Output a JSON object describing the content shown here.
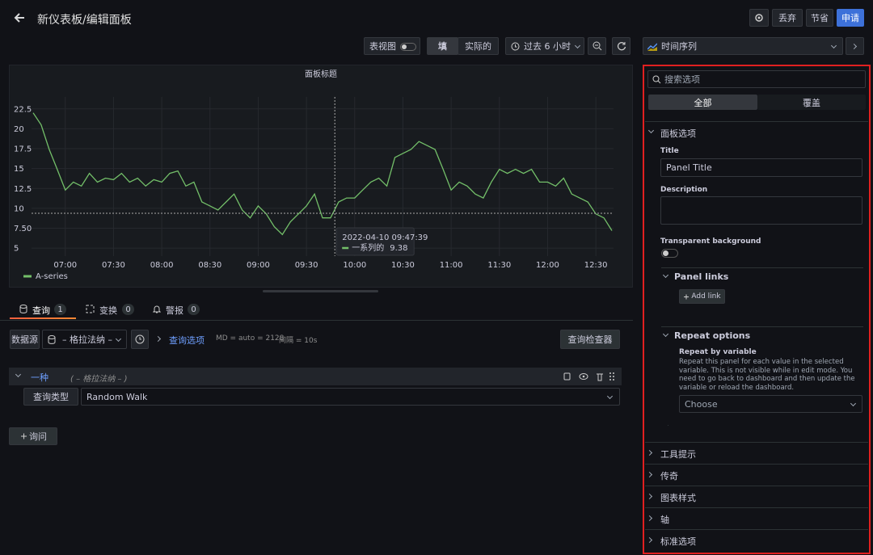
{
  "header": {
    "title": "新仪表板/编辑面板",
    "buttons": [
      "丢弃",
      "节省",
      "申请"
    ]
  },
  "toolbar": {
    "table_view": "表视图",
    "fill": "填",
    "actual": "实际的",
    "time_range": "过去 6 小时",
    "viz": "时间序列"
  },
  "chart_data": {
    "type": "line",
    "title": "面板标题",
    "x": [
      "06:40",
      "06:45",
      "06:50",
      "06:55",
      "07:00",
      "07:05",
      "07:10",
      "07:15",
      "07:20",
      "07:25",
      "07:30",
      "07:35",
      "07:40",
      "07:45",
      "07:50",
      "07:55",
      "08:00",
      "08:05",
      "08:10",
      "08:15",
      "08:20",
      "08:25",
      "08:30",
      "08:35",
      "08:40",
      "08:45",
      "08:50",
      "08:55",
      "09:00",
      "09:05",
      "09:10",
      "09:15",
      "09:20",
      "09:25",
      "09:30",
      "09:35",
      "09:40",
      "09:45",
      "09:50",
      "09:55",
      "10:00",
      "10:05",
      "10:10",
      "10:15",
      "10:20",
      "10:25",
      "10:30",
      "10:35",
      "10:40",
      "10:45",
      "10:50",
      "10:55",
      "11:00",
      "11:05",
      "11:10",
      "11:15",
      "11:20",
      "11:25",
      "11:30",
      "11:35",
      "11:40",
      "11:45",
      "11:50",
      "11:55",
      "12:00",
      "12:05",
      "12:10",
      "12:15",
      "12:20",
      "12:25",
      "12:30",
      "12:35",
      "12:40"
    ],
    "series": [
      {
        "name": "A-series",
        "color": "#73bf69",
        "values": [
          22,
          20.5,
          17.4,
          14.9,
          12.3,
          13.3,
          12.8,
          14.4,
          13.3,
          13.8,
          13.6,
          14.4,
          13.3,
          13.8,
          12.8,
          13.6,
          13.3,
          14.4,
          14.7,
          12.8,
          13.3,
          10.8,
          10.3,
          9.8,
          10.8,
          11.8,
          9.8,
          8.8,
          10.3,
          9.3,
          7.7,
          6.7,
          8.3,
          9.3,
          10.3,
          11.8,
          8.8,
          8.8,
          10.8,
          11.3,
          11.3,
          12.3,
          13.3,
          13.8,
          12.8,
          16.4,
          16.9,
          17.4,
          18.4,
          17.9,
          17.4,
          14.9,
          12.3,
          13.3,
          12.8,
          11.8,
          11.3,
          13.3,
          14.9,
          14.4,
          14.9,
          14.4,
          14.9,
          13.3,
          13.3,
          12.8,
          13.8,
          11.8,
          11.3,
          10.8,
          9.3,
          8.8,
          7.2
        ]
      }
    ],
    "xlim": [
      "06:39",
      "12:41"
    ],
    "xticks": [
      "07:00",
      "07:30",
      "08:00",
      "08:30",
      "09:00",
      "09:30",
      "10:00",
      "10:30",
      "11:00",
      "11:30",
      "12:00",
      "12:30"
    ],
    "ylim": [
      4,
      24
    ],
    "yticks": [
      5,
      {
        "value": 7.5,
        "label": "7.50"
      },
      10,
      12.5,
      15,
      17.5,
      20,
      22.5
    ],
    "grid": true,
    "tooltip": {
      "time": "2022-04-10 09:47:39",
      "name": "一系列的",
      "value": 9.38
    }
  },
  "query_tabs": [
    {
      "label": "查询",
      "count": 1
    },
    {
      "label": "变换",
      "count": 0
    },
    {
      "label": "警报",
      "count": 0
    }
  ],
  "query": {
    "datasource_label": "数据源",
    "datasource": "– 格拉法纳 –",
    "options_link": "查询选项",
    "md": "MD = auto = 2128",
    "interval": "间隔 = 10s",
    "inspector": "查询检查器",
    "row_name": "一种",
    "row_source": "( – 格拉法纳 – )",
    "type_label": "查询类型",
    "type_value": "Random Walk",
    "add_query": "询问"
  },
  "options": {
    "search_placeholder": "搜索选项",
    "tabs": [
      "全部",
      "覆盖"
    ],
    "section": "面板选项",
    "title_label": "Title",
    "title_value": "Panel Title",
    "description_label": "Description",
    "transparent_label": "Transparent background",
    "panel_links": "Panel links",
    "add_link": "Add link",
    "repeat_options": "Repeat options",
    "repeat_by": "Repeat by variable",
    "repeat_help": "Repeat this panel for each value in the selected variable. This is not visible while in edit mode. You need to go back to dashboard and then update the variable or reload the dashboard.",
    "choose": "Choose",
    "collapsed": [
      "工具提示",
      "传奇",
      "图表样式",
      "轴",
      "标准选项"
    ]
  }
}
